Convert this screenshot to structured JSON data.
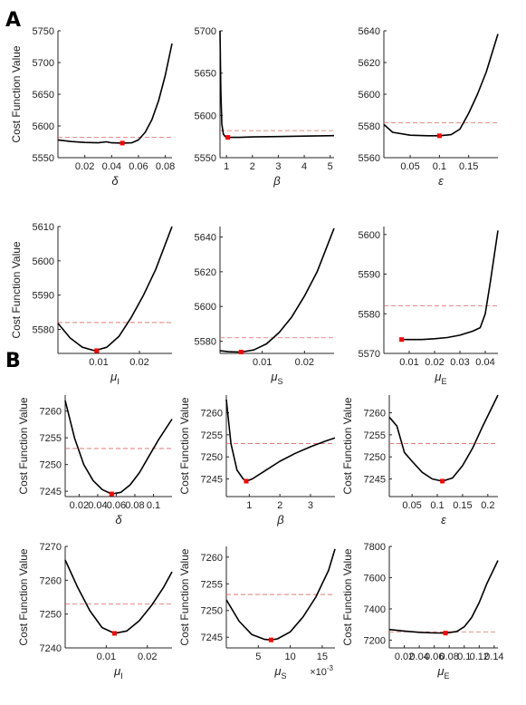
{
  "panel_labels": [
    "A",
    "B"
  ],
  "colors": {
    "curve": "#000000",
    "minimum_marker": "#ff0000",
    "threshold_line": "#e06666",
    "axis": "#262626"
  },
  "chart_data": [
    {
      "panel": "A",
      "type": "line",
      "ylabel": "Cost Function Value",
      "xlabel": "δ",
      "xlabel_sub": "",
      "xlim": [
        0,
        0.085
      ],
      "ylim": [
        5550,
        5750
      ],
      "xticks": [
        0.02,
        0.04,
        0.06,
        0.08
      ],
      "xtick_labels": [
        "0.02",
        "0.04",
        "0.06",
        "0.08"
      ],
      "yticks": [
        5550,
        5600,
        5650,
        5700,
        5750
      ],
      "ytick_labels": [
        "5550",
        "5600",
        "5650",
        "5700",
        "5750"
      ],
      "x": [
        0,
        0.01,
        0.02,
        0.03,
        0.036,
        0.04,
        0.048,
        0.055,
        0.06,
        0.065,
        0.07,
        0.075,
        0.08,
        0.085
      ],
      "y": [
        5578,
        5575.5,
        5574,
        5573.5,
        5575,
        5573.5,
        5573,
        5573.5,
        5578,
        5590,
        5610,
        5640,
        5680,
        5730
      ],
      "min": [
        0.048,
        5573
      ],
      "threshold": 5582
    },
    {
      "panel": "A",
      "type": "line",
      "ylabel": "",
      "xlabel": "β",
      "xlabel_sub": "",
      "xlim": [
        0.75,
        5.15
      ],
      "ylim": [
        5550,
        5700
      ],
      "xticks": [
        1,
        2,
        3,
        4,
        5
      ],
      "xtick_labels": [
        "1",
        "2",
        "3",
        "4",
        "5"
      ],
      "yticks": [
        5550,
        5600,
        5650,
        5700
      ],
      "ytick_labels": [
        "5550",
        "5600",
        "5650",
        "5700"
      ],
      "x": [
        0.75,
        0.78,
        0.82,
        0.88,
        0.95,
        1.05,
        1.5,
        2,
        3,
        4,
        5.15
      ],
      "y": [
        5700,
        5630,
        5590,
        5578,
        5575,
        5574,
        5574,
        5574.5,
        5575,
        5575.5,
        5576
      ],
      "min": [
        1.05,
        5574
      ],
      "threshold": 5582
    },
    {
      "panel": "A",
      "type": "line",
      "ylabel": "",
      "xlabel": "ε",
      "xlabel_sub": "",
      "xlim": [
        0.005,
        0.2
      ],
      "ylim": [
        5560,
        5640
      ],
      "xticks": [
        0.05,
        0.1,
        0.15
      ],
      "xtick_labels": [
        "0.05",
        "0.1",
        "0.15"
      ],
      "yticks": [
        5560,
        5580,
        5600,
        5620,
        5640
      ],
      "ytick_labels": [
        "5560",
        "5580",
        "5600",
        "5620",
        "5640"
      ],
      "x": [
        0.005,
        0.02,
        0.05,
        0.08,
        0.1,
        0.12,
        0.135,
        0.15,
        0.165,
        0.18,
        0.2
      ],
      "y": [
        5581,
        5576,
        5574.2,
        5573.8,
        5573.8,
        5574.5,
        5578,
        5588,
        5600,
        5614,
        5638
      ],
      "min": [
        0.1,
        5573.8
      ],
      "threshold": 5582
    },
    {
      "panel": "A",
      "type": "line",
      "ylabel": "Cost Function Value",
      "xlabel": "μ",
      "xlabel_sub": "I",
      "xlim": [
        0,
        0.028
      ],
      "ylim": [
        5573,
        5610
      ],
      "xticks": [
        0.01,
        0.02
      ],
      "xtick_labels": [
        "0.01",
        "0.02"
      ],
      "yticks": [
        5580,
        5590,
        5600,
        5610
      ],
      "ytick_labels": [
        "5580",
        "5590",
        "5600",
        "5610"
      ],
      "x": [
        0,
        0.003,
        0.006,
        0.009,
        0.012,
        0.015,
        0.018,
        0.021,
        0.024,
        0.028
      ],
      "y": [
        5581.8,
        5577.5,
        5574.8,
        5573.8,
        5574.8,
        5578,
        5583.5,
        5590,
        5597.5,
        5610
      ],
      "min": [
        0.0095,
        5573.8
      ],
      "threshold": 5582
    },
    {
      "panel": "A",
      "type": "line",
      "ylabel": "",
      "xlabel": "μ",
      "xlabel_sub": "S",
      "xlim": [
        0,
        0.027
      ],
      "ylim": [
        5573,
        5646
      ],
      "xticks": [
        0.01,
        0.02
      ],
      "xtick_labels": [
        "0.01",
        "0.02"
      ],
      "yticks": [
        5580,
        5600,
        5620,
        5640
      ],
      "ytick_labels": [
        "5580",
        "5600",
        "5620",
        "5640"
      ],
      "x": [
        0,
        0.002,
        0.005,
        0.008,
        0.011,
        0.014,
        0.017,
        0.02,
        0.023,
        0.027
      ],
      "y": [
        5574.5,
        5574,
        5573.8,
        5575,
        5578.5,
        5585,
        5594,
        5606,
        5620,
        5645
      ],
      "min": [
        0.005,
        5573.8
      ],
      "threshold": 5582
    },
    {
      "panel": "A",
      "type": "line",
      "ylabel": "",
      "xlabel": "μ",
      "xlabel_sub": "E",
      "xlim": [
        0,
        0.045
      ],
      "ylim": [
        5570,
        5602
      ],
      "xticks": [
        0.01,
        0.02,
        0.03,
        0.04
      ],
      "xtick_labels": [
        "0.01",
        "0.02",
        "0.03",
        "0.04"
      ],
      "yticks": [
        5570,
        5580,
        5590,
        5600
      ],
      "ytick_labels": [
        "5570",
        "5580",
        "5590",
        "5600"
      ],
      "x": [
        0.007,
        0.015,
        0.02,
        0.025,
        0.03,
        0.035,
        0.038,
        0.04,
        0.042,
        0.045
      ],
      "y": [
        5573.5,
        5573.5,
        5573.7,
        5574,
        5574.6,
        5575.6,
        5576.5,
        5580,
        5588,
        5601
      ],
      "min": [
        0.007,
        5573.5
      ],
      "threshold": 5582
    },
    {
      "panel": "B",
      "type": "line",
      "ylabel": "Cost Function Value",
      "xlabel": "δ",
      "xlabel_sub": "",
      "xlim": [
        0.005,
        0.12
      ],
      "ylim": [
        7244,
        7263
      ],
      "xticks": [
        0.02,
        0.04,
        0.06,
        0.08,
        0.1
      ],
      "xtick_labels": [
        "0.02",
        "0.04",
        "0.06",
        "0.08",
        "0.1"
      ],
      "yticks": [
        7245,
        7250,
        7255,
        7260
      ],
      "ytick_labels": [
        "7245",
        "7250",
        "7255",
        "7260"
      ],
      "x": [
        0.005,
        0.015,
        0.025,
        0.035,
        0.045,
        0.055,
        0.065,
        0.075,
        0.085,
        0.095,
        0.105,
        0.12
      ],
      "y": [
        7262,
        7255,
        7250,
        7247,
        7245.3,
        7244.5,
        7244.8,
        7246.2,
        7248.5,
        7251.5,
        7254.5,
        7258.5
      ],
      "min": [
        0.055,
        7244.5
      ],
      "threshold": 7253
    },
    {
      "panel": "B",
      "type": "line",
      "ylabel": "Cost Function Value",
      "xlabel": "β",
      "xlabel_sub": "",
      "xlim": [
        0.25,
        3.8
      ],
      "ylim": [
        7241,
        7264
      ],
      "xticks": [
        1,
        2,
        3
      ],
      "xtick_labels": [
        "1",
        "2",
        "3"
      ],
      "yticks": [
        7245,
        7250,
        7255,
        7260
      ],
      "ytick_labels": [
        "7245",
        "7250",
        "7255",
        "7260"
      ],
      "x": [
        0.25,
        0.4,
        0.6,
        0.8,
        0.9,
        1.1,
        1.5,
        2,
        2.5,
        3,
        3.5,
        3.8
      ],
      "y": [
        7263,
        7253,
        7247,
        7245,
        7244.5,
        7245,
        7246.8,
        7249,
        7250.8,
        7252.3,
        7253.6,
        7254.3
      ],
      "min": [
        0.9,
        7244.5
      ],
      "threshold": 7253
    },
    {
      "panel": "B",
      "type": "line",
      "ylabel": "Cost Function Value",
      "xlabel": "ε",
      "xlabel_sub": "",
      "xlim": [
        0.005,
        0.22
      ],
      "ylim": [
        7241,
        7264
      ],
      "xticks": [
        0.05,
        0.1,
        0.15,
        0.2
      ],
      "xtick_labels": [
        "0.05",
        "0.1",
        "0.15",
        "0.2"
      ],
      "yticks": [
        7245,
        7250,
        7255,
        7260
      ],
      "ytick_labels": [
        "7245",
        "7250",
        "7255",
        "7260"
      ],
      "x": [
        0.005,
        0.02,
        0.035,
        0.05,
        0.07,
        0.09,
        0.11,
        0.13,
        0.15,
        0.17,
        0.19,
        0.22
      ],
      "y": [
        7259,
        7257,
        7251,
        7249,
        7246.5,
        7245,
        7244.5,
        7245.2,
        7248,
        7252,
        7257,
        7264
      ],
      "min": [
        0.11,
        7244.5
      ],
      "threshold": 7253
    },
    {
      "panel": "B",
      "type": "line",
      "ylabel": "Cost Function Value",
      "xlabel": "μ",
      "xlabel_sub": "I",
      "xlim": [
        0,
        0.026
      ],
      "ylim": [
        7240,
        7270
      ],
      "xticks": [
        0.01,
        0.02
      ],
      "xtick_labels": [
        "0.01",
        "0.02"
      ],
      "yticks": [
        7240,
        7250,
        7260,
        7270
      ],
      "ytick_labels": [
        "7240",
        "7250",
        "7260",
        "7270"
      ],
      "x": [
        0,
        0.003,
        0.006,
        0.009,
        0.012,
        0.015,
        0.018,
        0.021,
        0.024,
        0.026
      ],
      "y": [
        7266,
        7258,
        7251,
        7246,
        7244.3,
        7245,
        7248,
        7252.5,
        7258,
        7262.5
      ],
      "min": [
        0.012,
        7244.3
      ],
      "threshold": 7253
    },
    {
      "panel": "B",
      "type": "line",
      "ylabel": "Cost Function Value",
      "xlabel": "μ",
      "xlabel_sub": "S",
      "xlim": [
        0,
        17
      ],
      "ylim": [
        7243,
        7262
      ],
      "x_exponent": "×10",
      "x_exponent_power": "-3",
      "xticks": [
        5,
        10,
        15
      ],
      "xtick_labels": [
        "5",
        "10",
        "15"
      ],
      "yticks": [
        7245,
        7250,
        7255,
        7260
      ],
      "ytick_labels": [
        "7245",
        "7250",
        "7255",
        "7260"
      ],
      "x": [
        0,
        2,
        4,
        6,
        7,
        8,
        10,
        12,
        14,
        16,
        17
      ],
      "y": [
        7252,
        7248,
        7245.5,
        7244.6,
        7244.5,
        7244.7,
        7246,
        7248.8,
        7252.5,
        7257.5,
        7261.5
      ],
      "min": [
        7,
        7244.5
      ],
      "threshold": 7253
    },
    {
      "panel": "B",
      "type": "line",
      "ylabel": "Cost Function Value",
      "xlabel": "μ",
      "xlabel_sub": "E",
      "xlim": [
        0,
        0.145
      ],
      "ylim": [
        7150,
        7800
      ],
      "xticks": [
        0.02,
        0.04,
        0.06,
        0.08,
        0.1,
        0.12,
        0.14
      ],
      "xtick_labels": [
        "0.02",
        "0.04",
        "0.06",
        "0.08",
        "0.1",
        "0.12",
        "0.14"
      ],
      "yticks": [
        7200,
        7400,
        7600,
        7800
      ],
      "ytick_labels": [
        "7200",
        "7400",
        "7600",
        "7800"
      ],
      "x": [
        0,
        0.02,
        0.04,
        0.06,
        0.075,
        0.09,
        0.1,
        0.11,
        0.12,
        0.13,
        0.145
      ],
      "y": [
        7268,
        7258,
        7250,
        7246,
        7245,
        7255,
        7285,
        7345,
        7440,
        7560,
        7710
      ],
      "min": [
        0.075,
        7245
      ],
      "threshold": 7253
    }
  ]
}
